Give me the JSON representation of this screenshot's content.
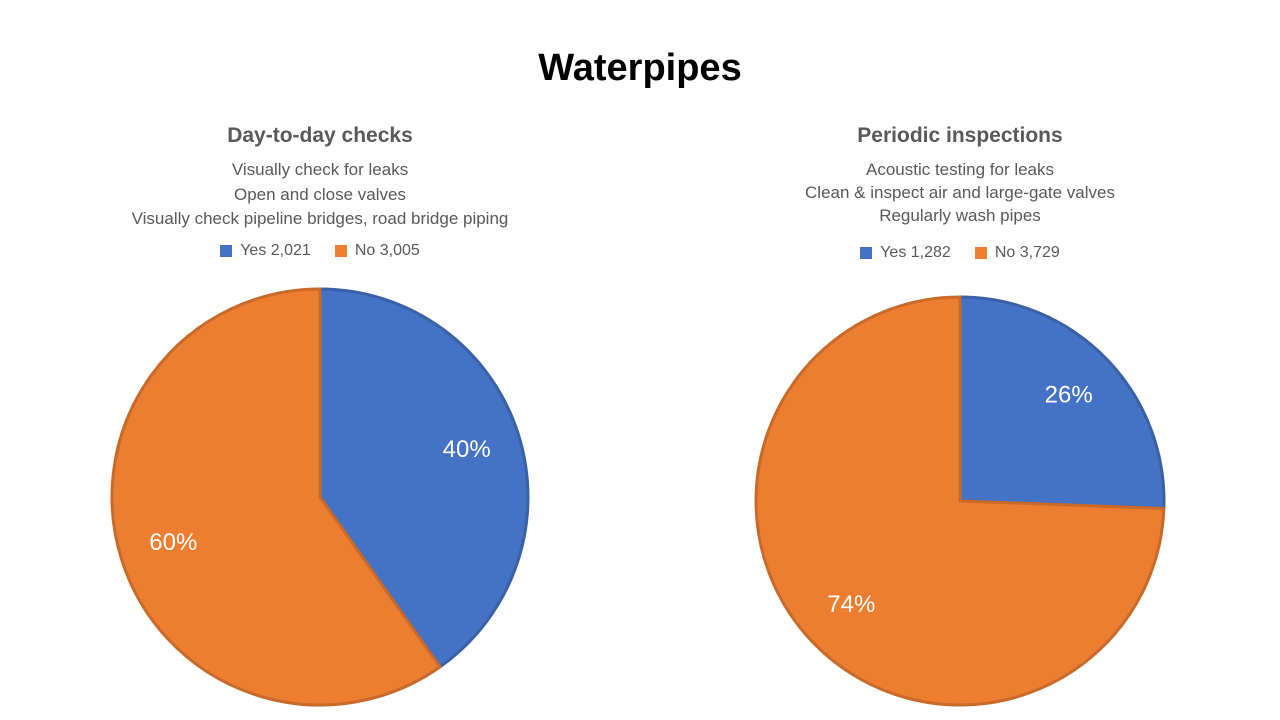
{
  "title": "Waterpipes",
  "chart_data": [
    {
      "type": "pie",
      "title": "Day-to-day checks",
      "subtitle_lines": [
        "Visually check for leaks",
        "Open and close valves",
        "Visually check pipeline bridges, road bridge piping"
      ],
      "legend_placement": "top",
      "slices": [
        {
          "label": "Yes",
          "value": 2021,
          "value_text": "2,021",
          "percent_text": "40%",
          "color": "#4472C4"
        },
        {
          "label": "No",
          "value": 3005,
          "value_text": "3,005",
          "percent_text": "60%",
          "color": "#ED7D31"
        }
      ]
    },
    {
      "type": "pie",
      "title": "Periodic inspections",
      "subtitle_lines": [
        "Acoustic testing for leaks",
        "Clean & inspect air and large-gate valves",
        "Regularly wash pipes"
      ],
      "legend_placement": "top",
      "slices": [
        {
          "label": "Yes",
          "value": 1282,
          "value_text": "1,282",
          "percent_text": "26%",
          "color": "#4472C4"
        },
        {
          "label": "No",
          "value": 3729,
          "value_text": "3,729",
          "percent_text": "74%",
          "color": "#ED7D31"
        }
      ]
    }
  ]
}
